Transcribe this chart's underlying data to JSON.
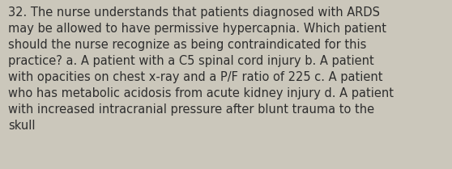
{
  "lines": [
    "32. The nurse understands that patients diagnosed with ARDS",
    "may be allowed to have permissive hypercapnia. Which patient",
    "should the nurse recognize as being contraindicated for this",
    "practice? a. A patient with a C5 spinal cord injury b. A patient",
    "with opacities on chest x-ray and a P/F ratio of 225 c. A patient",
    "who has metabolic acidosis from acute kidney injury d. A patient",
    "with increased intracranial pressure after blunt trauma to the",
    "skull"
  ],
  "background_color": "#cbc7bb",
  "text_color": "#2e2e2e",
  "font_size": 10.5,
  "fig_width": 5.58,
  "fig_height": 2.09,
  "dpi": 100
}
